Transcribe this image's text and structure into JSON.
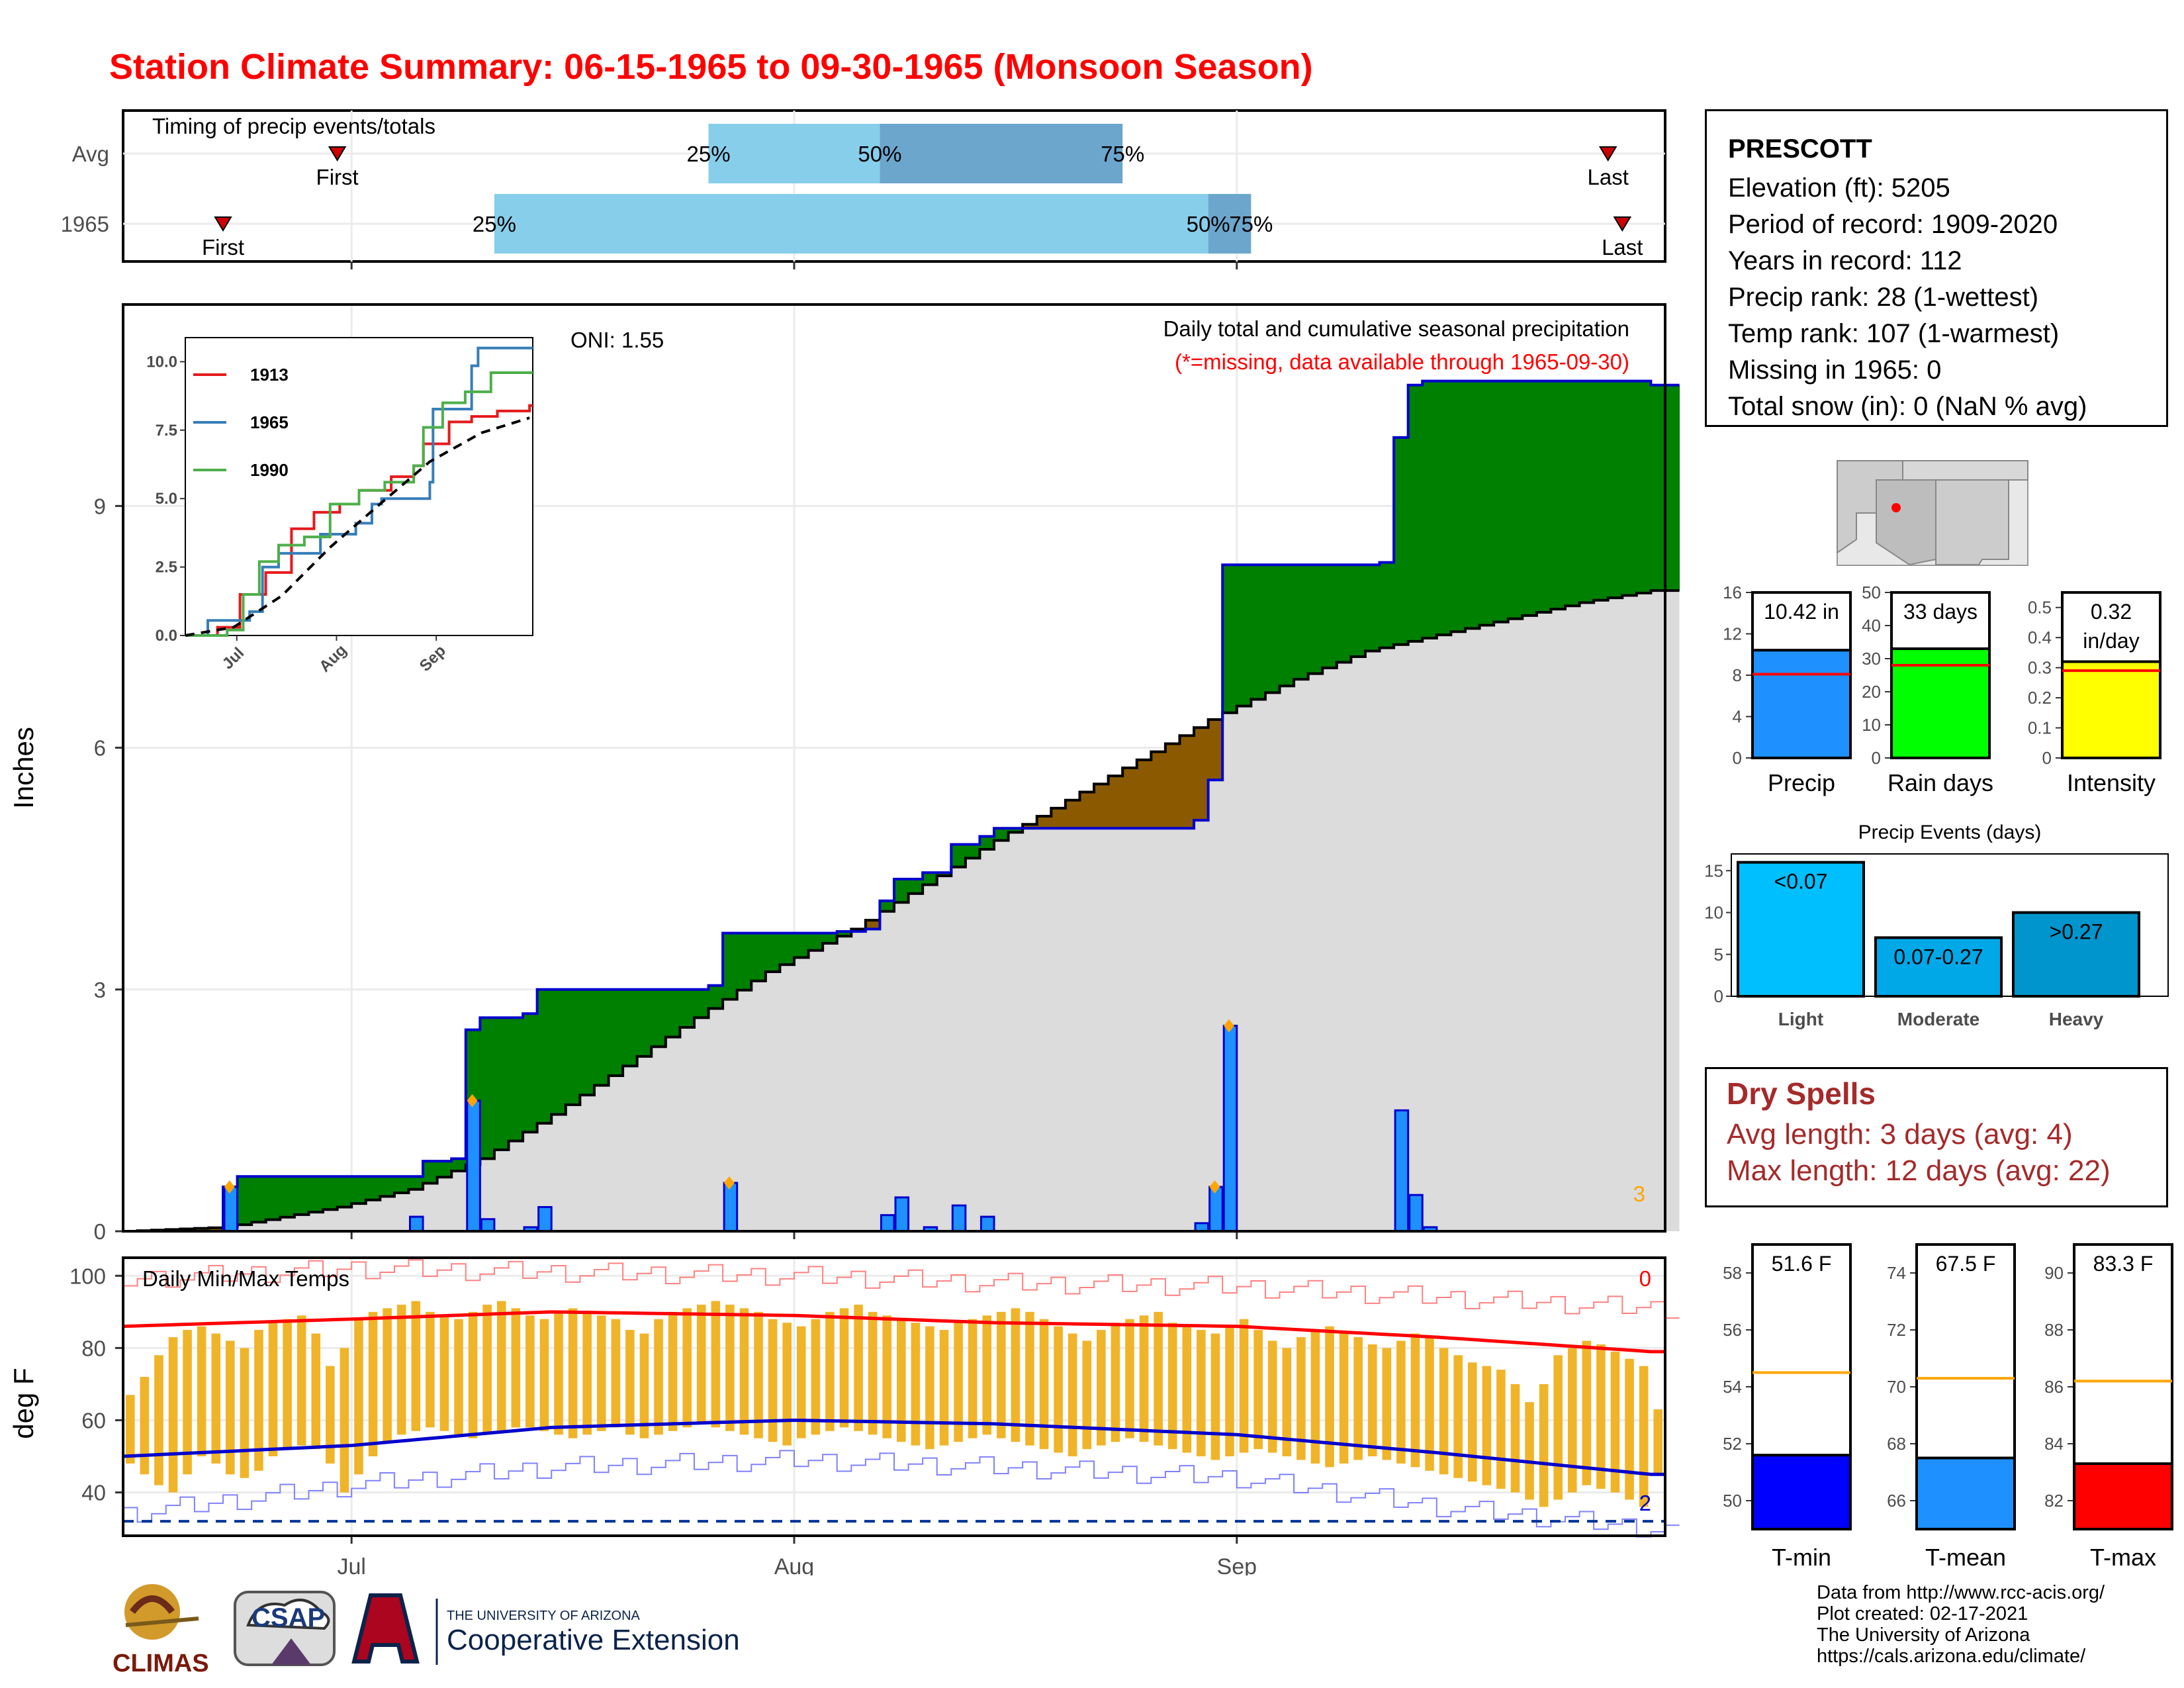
{
  "title": "Station Climate Summary: 06-15-1965 to 09-30-1965 (Monsoon Season)",
  "timing": {
    "label": "Timing of precip events/totals",
    "rows": [
      {
        "name": "Avg",
        "first_date": "06-30",
        "last_date": "09-27",
        "p25_date": "07-26",
        "p50_date": "08-07",
        "p75_date": "08-24",
        "first_label": "First",
        "last_label": "Last",
        "p25_label": "25%",
        "p50_label": "50%",
        "p75_label": "75%"
      },
      {
        "name": "1965",
        "first_date": "06-22",
        "last_date": "09-28",
        "p25_date": "07-11",
        "p50_date": "08-30",
        "p75_date": "09-02",
        "first_label": "First",
        "last_label": "Last",
        "p25_label": "25%",
        "p50_label": "50%",
        "p75_label": "75%"
      }
    ],
    "colors": {
      "q1": "#87ceeb",
      "q2": "#6ca6cd",
      "marker": "#cc0000"
    }
  },
  "main": {
    "ylabel": "Inches",
    "oni": "ONI: 1.55",
    "caption_line1": "Daily total and cumulative seasonal precipitation",
    "caption_line2": "(*=missing, data available through 1965-09-30)",
    "corner_count": "3"
  },
  "inset": {
    "legend": [
      {
        "name": "1913",
        "color": "#e41a1c"
      },
      {
        "name": "1965",
        "color": "#377eb8"
      },
      {
        "name": "1990",
        "color": "#4daf4a"
      }
    ]
  },
  "temps": {
    "label": "Daily Min/Max Temps",
    "ylabel": "deg F",
    "max_count": "0",
    "min_count": "2"
  },
  "station": {
    "name": "PRESCOTT",
    "lines": [
      "Elevation (ft): 5205",
      "Period of record: 1909-2020",
      "Years in record: 112",
      "Precip rank: 28 (1-wettest)",
      "Temp rank: 107 (1-warmest)",
      "Missing in 1965: 0",
      "Total snow (in): 0 (NaN % avg)"
    ]
  },
  "dry_spells": {
    "title": "Dry Spells",
    "avg_line": "Avg length: 3 days (avg: 4)",
    "max_line": "Max length: 12 days (avg: 22)"
  },
  "footer": {
    "lines": [
      "Data from http://www.rcc-acis.org/",
      "Plot created: 02-17-2021",
      "The University of Arizona",
      "https://cals.arizona.edu/climate/"
    ],
    "logos": {
      "climas": "CLIMAS",
      "csap": "CSAP",
      "ua_line1": "THE UNIVERSITY OF ARIZONA",
      "ua_line2": "Cooperative Extension"
    }
  },
  "chart_data": [
    {
      "type": "line",
      "id": "cumulative-precip",
      "x_unit": "date (1965)",
      "xlim": [
        "06-15",
        "09-30"
      ],
      "ylim": [
        0,
        11.5
      ],
      "x_ticks": [
        "Jul",
        "Aug",
        "Sep"
      ],
      "y_ticks": [
        0,
        3,
        6,
        9
      ],
      "ylabel": "Inches",
      "series": [
        {
          "name": "1965",
          "points": [
            [
              "06-15",
              0
            ],
            [
              "06-22",
              0.08
            ],
            [
              "06-22",
              0.55
            ],
            [
              "06-23",
              0.68
            ],
            [
              "07-05",
              0.68
            ],
            [
              "07-06",
              0.87
            ],
            [
              "07-08",
              0.9
            ],
            [
              "07-09",
              2.5
            ],
            [
              "07-10",
              2.65
            ],
            [
              "07-13",
              2.7
            ],
            [
              "07-14",
              3.0
            ],
            [
              "07-26",
              3.05
            ],
            [
              "07-27",
              3.7
            ],
            [
              "08-04",
              3.72
            ],
            [
              "08-06",
              3.75
            ],
            [
              "08-07",
              4.1
            ],
            [
              "08-08",
              4.37
            ],
            [
              "08-10",
              4.45
            ],
            [
              "08-12",
              4.8
            ],
            [
              "08-14",
              4.9
            ],
            [
              "08-15",
              5.0
            ],
            [
              "08-29",
              5.1
            ],
            [
              "08-30",
              5.6
            ],
            [
              "08-31",
              8.27
            ],
            [
              "09-11",
              8.3
            ],
            [
              "09-12",
              9.85
            ],
            [
              "09-13",
              10.5
            ],
            [
              "09-14",
              10.55
            ],
            [
              "09-30",
              10.5
            ]
          ]
        },
        {
          "name": "average",
          "points": [
            [
              "06-15",
              0
            ],
            [
              "06-22",
              0.05
            ],
            [
              "06-30",
              0.3
            ],
            [
              "07-05",
              0.52
            ],
            [
              "07-10",
              0.9
            ],
            [
              "07-15",
              1.45
            ],
            [
              "07-20",
              2.05
            ],
            [
              "07-25",
              2.65
            ],
            [
              "07-30",
              3.22
            ],
            [
              "08-05",
              3.75
            ],
            [
              "08-10",
              4.3
            ],
            [
              "08-15",
              4.85
            ],
            [
              "08-20",
              5.35
            ],
            [
              "08-25",
              5.85
            ],
            [
              "08-30",
              6.35
            ],
            [
              "09-05",
              6.85
            ],
            [
              "09-10",
              7.2
            ],
            [
              "09-15",
              7.4
            ],
            [
              "09-20",
              7.6
            ],
            [
              "09-25",
              7.8
            ],
            [
              "09-30",
              7.95
            ]
          ]
        }
      ]
    },
    {
      "type": "bar",
      "id": "daily-precip",
      "x": [
        "06-22",
        "07-05",
        "07-09",
        "07-10",
        "07-13",
        "07-14",
        "07-27",
        "08-07",
        "08-08",
        "08-10",
        "08-12",
        "08-14",
        "08-29",
        "08-30",
        "08-31",
        "09-12",
        "09-13",
        "09-14"
      ],
      "values": [
        0.55,
        0.18,
        1.62,
        0.15,
        0.05,
        0.3,
        0.6,
        0.2,
        0.42,
        0.05,
        0.32,
        0.18,
        0.1,
        0.55,
        2.55,
        1.5,
        0.45,
        0.05
      ]
    },
    {
      "type": "line",
      "id": "inset-cumulative",
      "xlim": [
        "06-15",
        "09-30"
      ],
      "ylim": [
        0,
        10.5
      ],
      "x_ticks": [
        "Jul",
        "Aug",
        "Sep"
      ],
      "y_ticks": [
        0.0,
        2.5,
        5.0,
        7.5,
        10.0
      ],
      "series": [
        {
          "name": "1913",
          "points": [
            [
              "06-15",
              0
            ],
            [
              "06-24",
              0
            ],
            [
              "06-25",
              0.3
            ],
            [
              "07-02",
              1.5
            ],
            [
              "07-10",
              2.3
            ],
            [
              "07-18",
              3.9
            ],
            [
              "07-25",
              4.5
            ],
            [
              "08-02",
              4.8
            ],
            [
              "08-08",
              5.3
            ],
            [
              "08-18",
              5.8
            ],
            [
              "08-25",
              6.2
            ],
            [
              "08-28",
              7.0
            ],
            [
              "09-05",
              7.8
            ],
            [
              "09-12",
              8.0
            ],
            [
              "09-20",
              8.2
            ],
            [
              "09-30",
              8.4
            ]
          ]
        },
        {
          "name": "1965",
          "points": [
            [
              "06-15",
              0
            ],
            [
              "06-22",
              0.55
            ],
            [
              "07-05",
              0.87
            ],
            [
              "07-09",
              2.5
            ],
            [
              "07-14",
              3.0
            ],
            [
              "07-27",
              3.7
            ],
            [
              "08-07",
              4.1
            ],
            [
              "08-12",
              4.8
            ],
            [
              "08-15",
              5.0
            ],
            [
              "08-30",
              5.6
            ],
            [
              "08-31",
              8.27
            ],
            [
              "09-12",
              9.85
            ],
            [
              "09-14",
              10.5
            ],
            [
              "09-30",
              10.5
            ]
          ]
        },
        {
          "name": "1990",
          "points": [
            [
              "06-15",
              0
            ],
            [
              "06-28",
              0.2
            ],
            [
              "07-03",
              1.5
            ],
            [
              "07-08",
              2.7
            ],
            [
              "07-14",
              3.3
            ],
            [
              "07-22",
              3.6
            ],
            [
              "07-30",
              4.8
            ],
            [
              "08-08",
              5.3
            ],
            [
              "08-16",
              5.6
            ],
            [
              "08-25",
              6.2
            ],
            [
              "08-28",
              7.6
            ],
            [
              "09-03",
              8.5
            ],
            [
              "09-10",
              8.9
            ],
            [
              "09-18",
              9.6
            ],
            [
              "09-30",
              9.6
            ]
          ]
        },
        {
          "name": "average",
          "points": [
            [
              "06-15",
              0
            ],
            [
              "06-30",
              0.3
            ],
            [
              "07-15",
              1.45
            ],
            [
              "07-30",
              3.22
            ],
            [
              "08-15",
              4.85
            ],
            [
              "08-30",
              6.35
            ],
            [
              "09-15",
              7.4
            ],
            [
              "09-30",
              7.95
            ]
          ]
        }
      ]
    },
    {
      "type": "line",
      "id": "daily-temps",
      "ylim": [
        28,
        105
      ],
      "y_ticks": [
        40,
        60,
        80,
        100
      ],
      "x_ticks": [
        "Jul",
        "Aug",
        "Sep"
      ],
      "freeze_line": 32,
      "series": [
        {
          "name": "normal max",
          "color": "#ff0000",
          "points": [
            [
              "06-15",
              86
            ],
            [
              "07-01",
              88
            ],
            [
              "07-15",
              90
            ],
            [
              "08-01",
              89
            ],
            [
              "08-15",
              87
            ],
            [
              "09-01",
              86
            ],
            [
              "09-15",
              83
            ],
            [
              "09-30",
              79
            ]
          ]
        },
        {
          "name": "normal min",
          "color": "#0000cc",
          "points": [
            [
              "06-15",
              50
            ],
            [
              "07-01",
              53
            ],
            [
              "07-15",
              58
            ],
            [
              "08-01",
              60
            ],
            [
              "08-15",
              59
            ],
            [
              "09-01",
              56
            ],
            [
              "09-15",
              51
            ],
            [
              "09-30",
              45
            ]
          ]
        },
        {
          "name": "record max",
          "color": "#ff8080",
          "points": [
            [
              "06-15",
              99
            ],
            [
              "07-01",
              102
            ],
            [
              "07-15",
              101
            ],
            [
              "08-01",
              100
            ],
            [
              "08-15",
              98
            ],
            [
              "09-01",
              97
            ],
            [
              "09-15",
              94
            ],
            [
              "09-30",
              91
            ]
          ]
        },
        {
          "name": "record min",
          "color": "#8080ff",
          "points": [
            [
              "06-15",
              34
            ],
            [
              "07-01",
              42
            ],
            [
              "07-15",
              47
            ],
            [
              "08-01",
              49
            ],
            [
              "08-15",
              47
            ],
            [
              "09-01",
              44
            ],
            [
              "09-15",
              36
            ],
            [
              "09-30",
              30
            ]
          ]
        }
      ],
      "daily_max": [
        67,
        72,
        78,
        83,
        85,
        86,
        84,
        82,
        80,
        85,
        87,
        88,
        89,
        84,
        75,
        80,
        88,
        90,
        91,
        92,
        93,
        90,
        89,
        88,
        90,
        92,
        93,
        91,
        89,
        88,
        90,
        91,
        90,
        89,
        88,
        85,
        84,
        88,
        90,
        91,
        92,
        93,
        92,
        91,
        90,
        88,
        87,
        86,
        88,
        90,
        91,
        92,
        90,
        89,
        88,
        87,
        86,
        85,
        87,
        88,
        89,
        90,
        91,
        90,
        88,
        86,
        84,
        82,
        85,
        87,
        88,
        89,
        90,
        87,
        86,
        85,
        84,
        86,
        88,
        85,
        82,
        80,
        83,
        85,
        86,
        84,
        83,
        81,
        80,
        82,
        84,
        83,
        80,
        78,
        76,
        75,
        74,
        70,
        65,
        70,
        78,
        80,
        82,
        81,
        79,
        77,
        75,
        63
      ],
      "daily_min": [
        48,
        45,
        42,
        40,
        45,
        50,
        48,
        45,
        44,
        46,
        50,
        52,
        53,
        52,
        48,
        40,
        45,
        50,
        54,
        56,
        57,
        58,
        57,
        56,
        55,
        56,
        57,
        58,
        58,
        57,
        56,
        55,
        56,
        57,
        58,
        56,
        55,
        56,
        57,
        58,
        59,
        58,
        57,
        56,
        55,
        54,
        53,
        55,
        56,
        57,
        58,
        57,
        56,
        55,
        54,
        53,
        52,
        53,
        54,
        55,
        56,
        55,
        54,
        53,
        52,
        51,
        50,
        52,
        53,
        54,
        55,
        54,
        53,
        52,
        51,
        50,
        49,
        50,
        51,
        52,
        51,
        50,
        49,
        48,
        47,
        48,
        49,
        50,
        49,
        48,
        47,
        46,
        45,
        44,
        43,
        42,
        41,
        40,
        38,
        36,
        38,
        40,
        42,
        41,
        40,
        38,
        36,
        45
      ]
    },
    {
      "type": "bar",
      "id": "season-precip-summary",
      "categories": [
        "Precip",
        "Rain days",
        "Intensity"
      ],
      "values": [
        10.42,
        33,
        0.32
      ],
      "averages": [
        8.1,
        28,
        0.29
      ],
      "labels": [
        "10.42 in",
        "33 days",
        "0.32 in/day"
      ],
      "ylims": [
        [
          0,
          16
        ],
        [
          0,
          50
        ],
        [
          0,
          0.55
        ]
      ],
      "y_ticks": [
        [
          0,
          4,
          8,
          12,
          16
        ],
        [
          0,
          10,
          20,
          30,
          40,
          50
        ],
        [
          0.0,
          0.1,
          0.2,
          0.3,
          0.4,
          0.5
        ]
      ],
      "colors": [
        "#1e90ff",
        "#00ff00",
        "#ffff00"
      ]
    },
    {
      "type": "bar",
      "id": "precip-events",
      "title": "Precip Events (days)",
      "categories": [
        "Light",
        "Moderate",
        "Heavy"
      ],
      "values": [
        16,
        7,
        10
      ],
      "labels": [
        "<0.07",
        "0.07-0.27",
        ">0.27"
      ],
      "ylim": [
        0,
        17
      ],
      "y_ticks": [
        0,
        5,
        10,
        15
      ],
      "colors": [
        "#00bfff",
        "#00a8e8",
        "#0095cc"
      ]
    },
    {
      "type": "bar",
      "id": "season-temp-summary",
      "categories": [
        "T-min",
        "T-mean",
        "T-max"
      ],
      "values": [
        51.6,
        67.5,
        83.3
      ],
      "averages": [
        54.5,
        70.3,
        86.2
      ],
      "labels": [
        "51.6 F",
        "67.5 F",
        "83.3 F"
      ],
      "ylims": [
        [
          49,
          59
        ],
        [
          65,
          75
        ],
        [
          81,
          91
        ]
      ],
      "y_ticks": [
        [
          50,
          52,
          54,
          56,
          58
        ],
        [
          66,
          68,
          70,
          72,
          74
        ],
        [
          82,
          84,
          86,
          88,
          90
        ]
      ],
      "colors": [
        "#0000ff",
        "#1e90ff",
        "#ff0000"
      ]
    }
  ]
}
